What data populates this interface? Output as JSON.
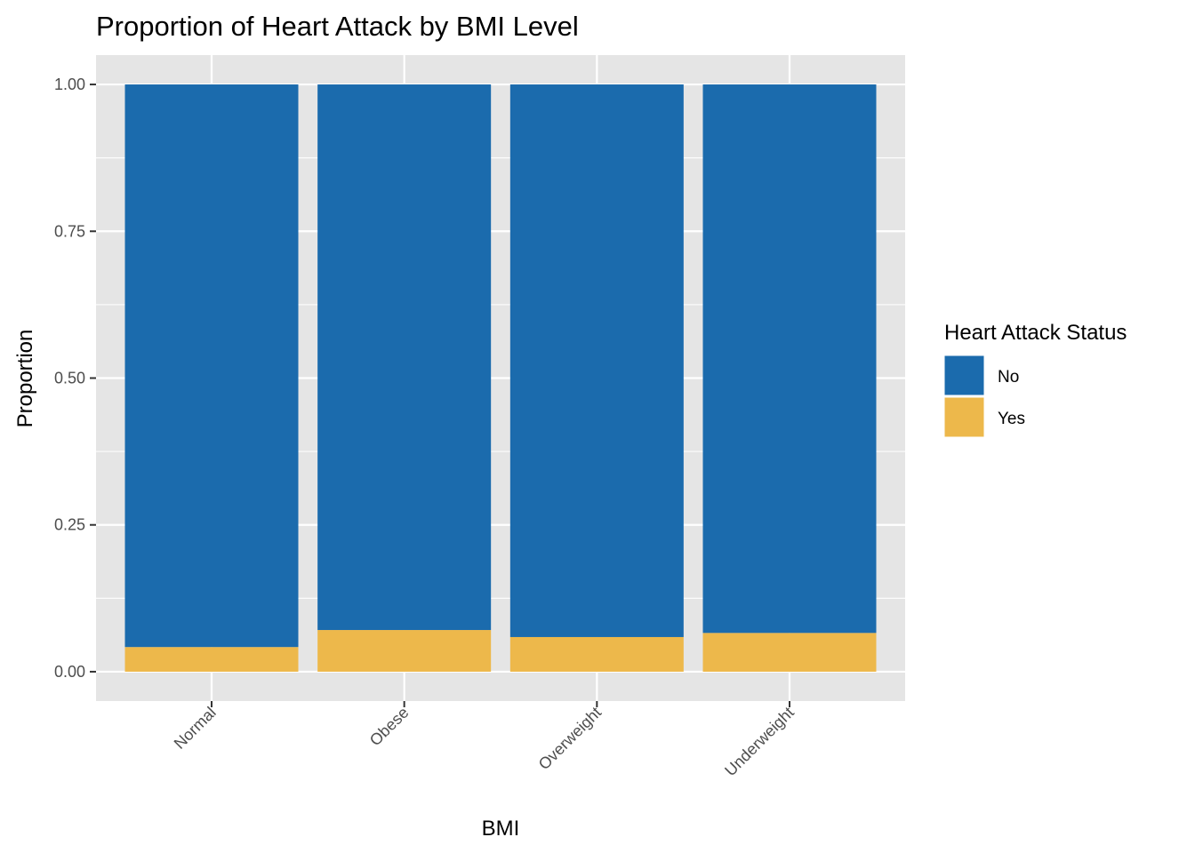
{
  "chart_data": {
    "type": "bar",
    "stacked": true,
    "title": "Proportion of Heart Attack by BMI Level",
    "xlabel": "BMI",
    "ylabel": "Proportion",
    "categories": [
      "Normal",
      "Obese",
      "Overweight",
      "Underweight"
    ],
    "series": [
      {
        "name": "No",
        "color": "#1B6BAD",
        "values": [
          0.958,
          0.929,
          0.941,
          0.934
        ]
      },
      {
        "name": "Yes",
        "color": "#EDB84B",
        "values": [
          0.042,
          0.071,
          0.059,
          0.066
        ]
      }
    ],
    "ylim": [
      -0.05,
      1.05
    ],
    "yticks": [
      0,
      0.25,
      0.5,
      0.75,
      1
    ],
    "ytick_labels": [
      "0.00",
      "0.25",
      "0.50",
      "0.75",
      "1.00"
    ],
    "legend": {
      "title": "Heart Attack Status",
      "placement": "right"
    },
    "grid": true,
    "panel_background": "#E5E5E5",
    "grid_color": "#FFFFFF"
  }
}
